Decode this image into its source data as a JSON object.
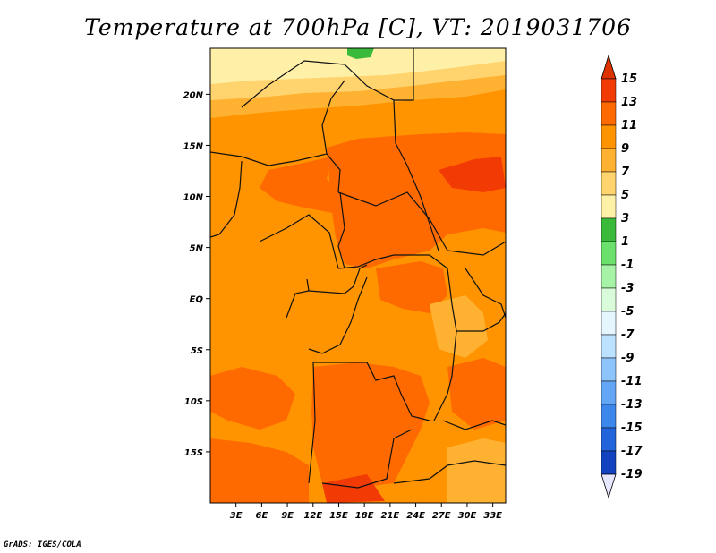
{
  "title": "Temperature at 700hPa [C], VT: 2019031706",
  "credit": "GrADS: IGES/COLA",
  "map": {
    "lat_range": [
      -20,
      24.5
    ],
    "lon_range": [
      0,
      34.5
    ],
    "lat_ticks": [
      {
        "value": 20,
        "label": "20N"
      },
      {
        "value": 15,
        "label": "15N"
      },
      {
        "value": 10,
        "label": "10N"
      },
      {
        "value": 5,
        "label": "5N"
      },
      {
        "value": 0,
        "label": "EQ"
      },
      {
        "value": -5,
        "label": "5S"
      },
      {
        "value": -10,
        "label": "10S"
      },
      {
        "value": -15,
        "label": "15S"
      }
    ],
    "lon_ticks": [
      {
        "value": 3,
        "label": "3E"
      },
      {
        "value": 6,
        "label": "6E"
      },
      {
        "value": 9,
        "label": "9E"
      },
      {
        "value": 12,
        "label": "12E"
      },
      {
        "value": 15,
        "label": "15E"
      },
      {
        "value": 18,
        "label": "18E"
      },
      {
        "value": 21,
        "label": "21E"
      },
      {
        "value": 24,
        "label": "24E"
      },
      {
        "value": 27,
        "label": "27E"
      },
      {
        "value": 30,
        "label": "30E"
      },
      {
        "value": 33,
        "label": "33E"
      }
    ]
  },
  "colorbar": {
    "levels": [
      {
        "label": "15",
        "color": "#cd2200"
      },
      {
        "label": "13",
        "color": "#f23a05"
      },
      {
        "label": "11",
        "color": "#ff6a00"
      },
      {
        "label": "9",
        "color": "#ff9400"
      },
      {
        "label": "7",
        "color": "#ffb132"
      },
      {
        "label": "5",
        "color": "#ffd46e"
      },
      {
        "label": "3",
        "color": "#fff0a8"
      },
      {
        "label": "1",
        "color": "#3aba3a"
      },
      {
        "label": "-1",
        "color": "#6ce06c"
      },
      {
        "label": "-3",
        "color": "#a6f2a6"
      },
      {
        "label": "-5",
        "color": "#d9fbd9"
      },
      {
        "label": "-7",
        "color": "#e6f6ff"
      },
      {
        "label": "-9",
        "color": "#bde2ff"
      },
      {
        "label": "-11",
        "color": "#8cc4fb"
      },
      {
        "label": "-13",
        "color": "#62a6f5"
      },
      {
        "label": "-15",
        "color": "#3d86ec"
      },
      {
        "label": "-17",
        "color": "#2264dc"
      },
      {
        "label": "-19",
        "color": "#1242bf"
      }
    ],
    "top_color": "#dd3300",
    "bottom_color": "#08086e",
    "below_color": "#e6e6ff"
  }
}
